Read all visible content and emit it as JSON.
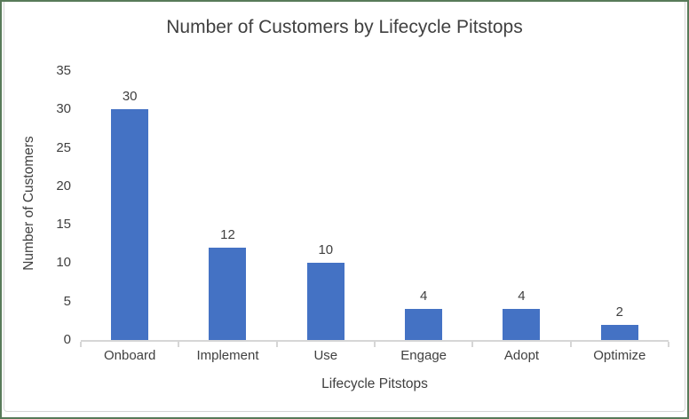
{
  "frame": {
    "background": "#ffffff",
    "outer_border_color": "#587a59",
    "inner_border_color": "#d6d6d6"
  },
  "chart_data": {
    "type": "bar",
    "title": "Number of Customers by Lifecycle Pitstops",
    "xlabel": "Lifecycle Pitstops",
    "ylabel": "Number of Customers",
    "categories": [
      "Onboard",
      "Implement",
      "Use",
      "Engage",
      "Adopt",
      "Optimize"
    ],
    "values": [
      30,
      12,
      10,
      4,
      4,
      2
    ],
    "data_labels": [
      "30",
      "12",
      "10",
      "4",
      "4",
      "2"
    ],
    "ylim": [
      0,
      35
    ],
    "yticks": [
      0,
      5,
      10,
      15,
      20,
      25,
      30,
      35
    ],
    "grid": false,
    "legend_position": "none",
    "bar_color": "#4472C4",
    "axis_color": "#d6d6d6",
    "text_color": "#404040"
  }
}
